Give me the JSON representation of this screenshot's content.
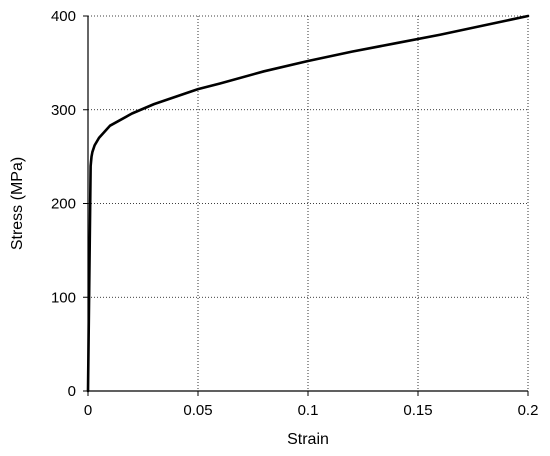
{
  "chart_data": {
    "type": "line",
    "title": "",
    "xlabel": "Strain",
    "ylabel": "Stress (MPa)",
    "xlim": [
      0,
      0.2
    ],
    "ylim": [
      0,
      400
    ],
    "x_ticks": [
      0,
      0.05,
      0.1,
      0.15,
      0.2
    ],
    "x_tick_labels": [
      "0",
      "0.05",
      "0.1",
      "0.15",
      "0.2"
    ],
    "y_ticks": [
      0,
      100,
      200,
      300,
      400
    ],
    "y_tick_labels": [
      "0",
      "100",
      "200",
      "300",
      "400"
    ],
    "grid": true,
    "grid_style": "dotted",
    "line_color": "#000000",
    "series": [
      {
        "x": [
          0,
          0.0012,
          0.0016,
          0.002,
          0.003,
          0.005,
          0.01,
          0.02,
          0.03,
          0.04,
          0.05,
          0.06,
          0.08,
          0.1,
          0.12,
          0.14,
          0.16,
          0.18,
          0.2
        ],
        "y": [
          0,
          240,
          250,
          255,
          262,
          270,
          283,
          296,
          306,
          314,
          322,
          328,
          341,
          352,
          362,
          371,
          380,
          390,
          400
        ]
      }
    ]
  }
}
